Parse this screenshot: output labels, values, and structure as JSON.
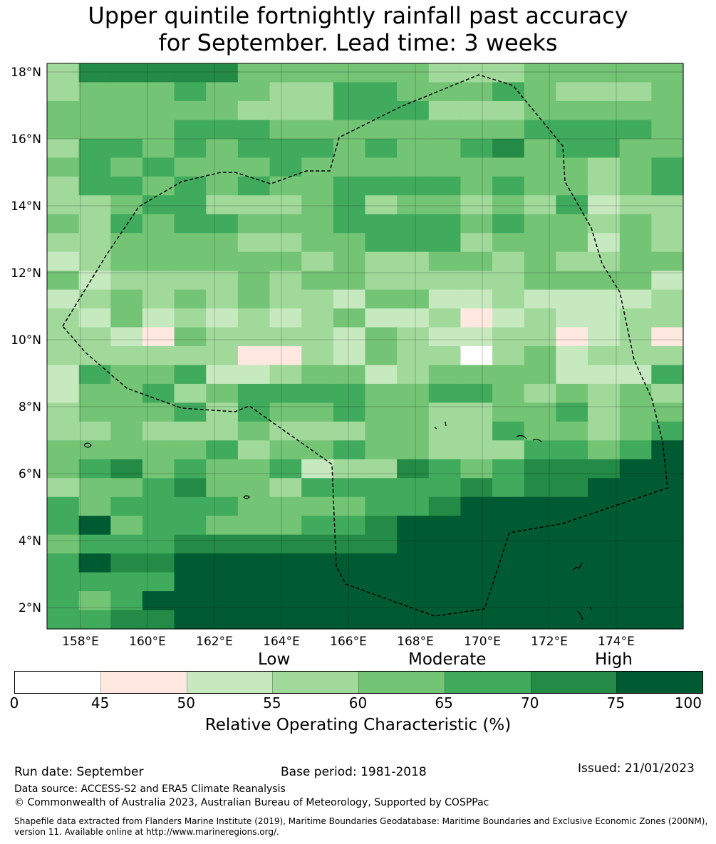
{
  "title": {
    "line1": "Upper quintile fortnightly rainfall past accuracy",
    "line2": "for September. Lead time: 3 weeks"
  },
  "map": {
    "lat_labels": [
      "18°N",
      "16°N",
      "14°N",
      "12°N",
      "10°N",
      "8°N",
      "6°N",
      "4°N",
      "2°N"
    ],
    "lon_labels": [
      "158°E",
      "160°E",
      "162°E",
      "164°E",
      "166°E",
      "168°E",
      "170°E",
      "172°E",
      "174°E"
    ],
    "lat_range": [
      1.4,
      18.4
    ],
    "lon_range": [
      157.0,
      176.0
    ],
    "grid_resolution_deg": 0.83,
    "roc_grid": [
      "36666644444433344444",
      "34445443355444543334",
      "44444433355533344444",
      "44445554444444455554",
      "35545455545445645544",
      "45454445444444444345",
      "35545454455554544345",
      "33455333453443435233",
      "43545544455554544343",
      "33444433445553444243",
      "23444444343344343344",
      "42333343443333344442",
      "23434343324422322223",
      "32423232342231232233",
      "33214333324322331231",
      "33333311324330342333",
      "25445223442344442225",
      "24453455554455434343",
      "34445354454433445344",
      "33433343334433544345",
      "44444534454433355457",
      "45645445233654566677",
      "34456443555556566777",
      "54555544445567777777",
      "57455444556777777777",
      "45556666666777777777",
      "57667777777777777777",
      "55557777777777777777",
      "54577777777777777777",
      "55667777777777777777"
    ]
  },
  "legend": {
    "categories": [
      "Low",
      "Moderate",
      "High"
    ],
    "ticks": [
      "0",
      "45",
      "50",
      "55",
      "60",
      "65",
      "70",
      "75",
      "100"
    ],
    "colors": [
      "#ffffff",
      "#fee8df",
      "#c7e9c0",
      "#a1d99b",
      "#74c476",
      "#41ab5d",
      "#238b45",
      "#005a32"
    ],
    "title": "Relative Operating Characteristic (%)"
  },
  "footer": {
    "run_date": "Run date: September",
    "base_period": "Base period: 1981-2018",
    "issued": "Issued: 21/01/2023",
    "data_source": "Data source: ACCESS-S2 and ERA5 Climate Reanalysis",
    "copyright": "© Commonwealth of Australia 2023, Australian Bureau of Meteorology, Supported by COSPPac",
    "shapefile_note": "Shapefile data extracted from Flanders Marine Institute (2019), Maritime Boundaries Geodatabase: Maritime Boundaries and Exclusive Economic Zones (200NM), version 11. Available online at http://www.marineregions.org/."
  }
}
